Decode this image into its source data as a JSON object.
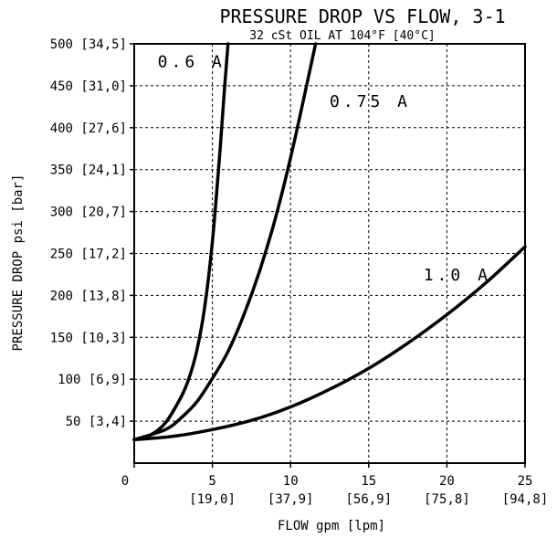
{
  "chart_data": {
    "type": "line",
    "title": "PRESSURE DROP VS FLOW, 3-1",
    "subtitle": "32 cSt OIL AT 104°F [40°C]",
    "xlabel": "FLOW gpm [lpm]",
    "ylabel": "PRESSURE DROP psi [bar]",
    "xlim": [
      0,
      25
    ],
    "ylim": [
      0,
      500
    ],
    "grid": true,
    "x_ticks": [
      {
        "value": 0,
        "label": "0",
        "sub": ""
      },
      {
        "value": 5,
        "label": "5",
        "sub": "[19,0]"
      },
      {
        "value": 10,
        "label": "10",
        "sub": "[37,9]"
      },
      {
        "value": 15,
        "label": "15",
        "sub": "[56,9]"
      },
      {
        "value": 20,
        "label": "20",
        "sub": "[75,8]"
      },
      {
        "value": 25,
        "label": "25",
        "sub": "[94,8]"
      }
    ],
    "y_ticks": [
      {
        "value": 50,
        "label": "50 [3,4]"
      },
      {
        "value": 100,
        "label": "100 [6,9]"
      },
      {
        "value": 150,
        "label": "150 [10,3]"
      },
      {
        "value": 200,
        "label": "200 [13,8]"
      },
      {
        "value": 250,
        "label": "250 [17,2]"
      },
      {
        "value": 300,
        "label": "300 [20,7]"
      },
      {
        "value": 350,
        "label": "350 [24,1]"
      },
      {
        "value": 400,
        "label": "400 [27,6]"
      },
      {
        "value": 450,
        "label": "450 [31,0]"
      },
      {
        "value": 500,
        "label": "500 [34,5]"
      }
    ],
    "series": [
      {
        "name": "0.6 A",
        "label_at": [
          1.5,
          472
        ],
        "x": [
          0,
          1,
          2,
          3,
          3.5,
          4,
          4.5,
          5,
          5.5,
          5.75,
          6.0
        ],
        "y": [
          28,
          33,
          48,
          79,
          101,
          134,
          185,
          264,
          376,
          440,
          500
        ]
      },
      {
        "name": "0.75 A",
        "label_at": [
          12.5,
          425
        ],
        "x": [
          0,
          2,
          3,
          4,
          5,
          6,
          7,
          8,
          9,
          10,
          11,
          11.6
        ],
        "y": [
          28,
          40,
          54,
          73,
          101,
          133,
          176,
          228,
          290,
          364,
          448,
          500
        ]
      },
      {
        "name": "1.0 A",
        "label_at": [
          18.5,
          218
        ],
        "x": [
          0,
          2.5,
          5,
          7.5,
          10,
          12.5,
          15,
          17.5,
          20,
          22.5,
          25
        ],
        "y": [
          28,
          32,
          40,
          51,
          67,
          88,
          113,
          143,
          177,
          215,
          258
        ]
      }
    ]
  }
}
